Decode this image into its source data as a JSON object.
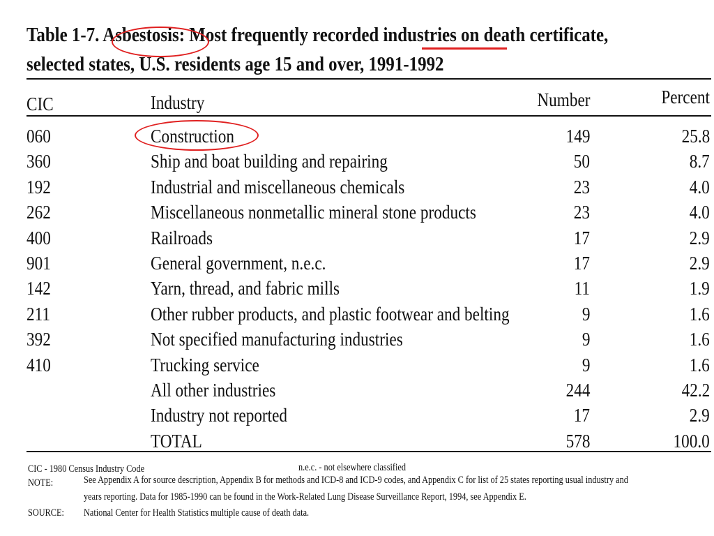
{
  "title": {
    "line1": "Table 1-7. Asbestosis: Most frequently recorded industries on death certificate,",
    "line2": "selected states, U.S. residents age 15 and over, 1991-1992"
  },
  "columns": {
    "cic": "CIC",
    "industry": "Industry",
    "number": "Number",
    "percent": "Percent"
  },
  "rows": [
    {
      "cic": "060",
      "industry": "Construction",
      "number": "149",
      "percent": "25.8"
    },
    {
      "cic": "360",
      "industry": "Ship and  boat building and repairing",
      "number": "50",
      "percent": "8.7"
    },
    {
      "cic": "192",
      "industry": "Industrial and miscellaneous chemicals",
      "number": "23",
      "percent": "4.0"
    },
    {
      "cic": "262",
      "industry": "Miscellaneous nonmetallic mineral stone products",
      "number": "23",
      "percent": "4.0"
    },
    {
      "cic": "400",
      "industry": "Railroads",
      "number": "17",
      "percent": "2.9"
    },
    {
      "cic": "901",
      "industry": "General government, n.e.c.",
      "number": "17",
      "percent": "2.9"
    },
    {
      "cic": "142",
      "industry": "Yarn, thread, and fabric mills",
      "number": "11",
      "percent": "1.9"
    },
    {
      "cic": "211",
      "industry": "Other rubber products, and plastic footwear and  belting",
      "number": "9",
      "percent": "1.6"
    },
    {
      "cic": "392",
      "industry": "Not specified manufacturing industries",
      "number": "9",
      "percent": "1.6"
    },
    {
      "cic": "410",
      "industry": "Trucking service",
      "number": "9",
      "percent": "1.6"
    },
    {
      "cic": "",
      "industry": "All other industries",
      "number": "244",
      "percent": "42.2"
    },
    {
      "cic": "",
      "industry": "Industry not reported",
      "number": "17",
      "percent": "2.9"
    },
    {
      "cic": "",
      "industry": "TOTAL",
      "number": "578",
      "percent": "100.0"
    }
  ],
  "footnotes": {
    "cic_def": "CIC - 1980 Census Industry Code",
    "nec_def": "n.e.c. - not elsewhere classified",
    "note_label": "NOTE:",
    "note_line1": "See Appendix A for source description,  Appendix B for methods and ICD-8 and ICD-9 codes, and Appendix C for list of 25 states reporting   usual industry and",
    "note_line2": "years reporting.  Data for 1985-1990 can be found in the Work-Related Lung Disease Surveillance Report, 1994, see Appendix E.",
    "source_label": "SOURCE:",
    "source_text": "National Center for Health Statistics multiple cause of death data."
  },
  "annotation_color": "#e02020"
}
